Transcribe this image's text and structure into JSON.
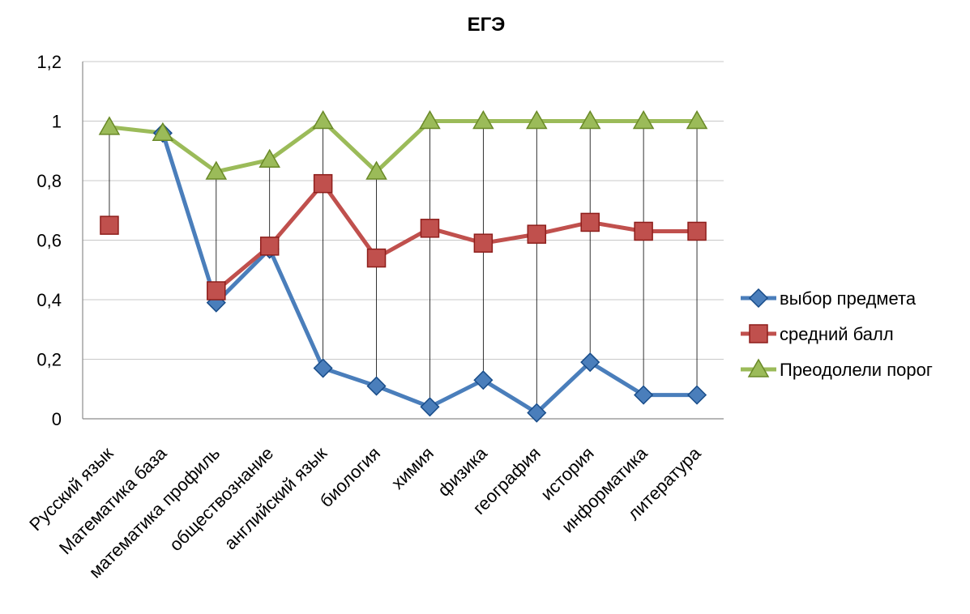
{
  "chart_data": {
    "type": "line",
    "title": "ЕГЭ",
    "xlabel": "",
    "ylabel": "",
    "ylim": [
      0,
      1.2
    ],
    "yticks": [
      "0",
      "0,2",
      "0,4",
      "0,6",
      "0,8",
      "1",
      "1,2"
    ],
    "ytick_values": [
      0,
      0.2,
      0.4,
      0.6,
      0.8,
      1.0,
      1.2
    ],
    "categories": [
      "Русский язык",
      "Математика база",
      "математика профиль",
      "обществознание",
      "английский язык",
      "биология",
      "химия",
      "физика",
      "география",
      "история",
      "информатика",
      "литература"
    ],
    "grid": true,
    "drop_lines": true,
    "legend_position": "right",
    "series": [
      {
        "name": "выбор предмета",
        "color": "#4a7ebb",
        "marker": "diamond",
        "values": [
          null,
          0.96,
          0.39,
          0.57,
          0.17,
          0.11,
          0.04,
          0.13,
          0.02,
          0.19,
          0.08,
          0.08
        ]
      },
      {
        "name": "средний балл",
        "color": "#c0504d",
        "marker": "square",
        "values": [
          0.65,
          null,
          0.43,
          0.58,
          0.79,
          0.54,
          0.64,
          0.59,
          0.62,
          0.66,
          0.63,
          0.63
        ]
      },
      {
        "name": "Преодолели порог",
        "color": "#9bbb59",
        "marker": "triangle",
        "values": [
          0.98,
          0.96,
          0.83,
          0.87,
          1.0,
          0.83,
          1.0,
          1.0,
          1.0,
          1.0,
          1.0,
          1.0
        ]
      }
    ]
  }
}
